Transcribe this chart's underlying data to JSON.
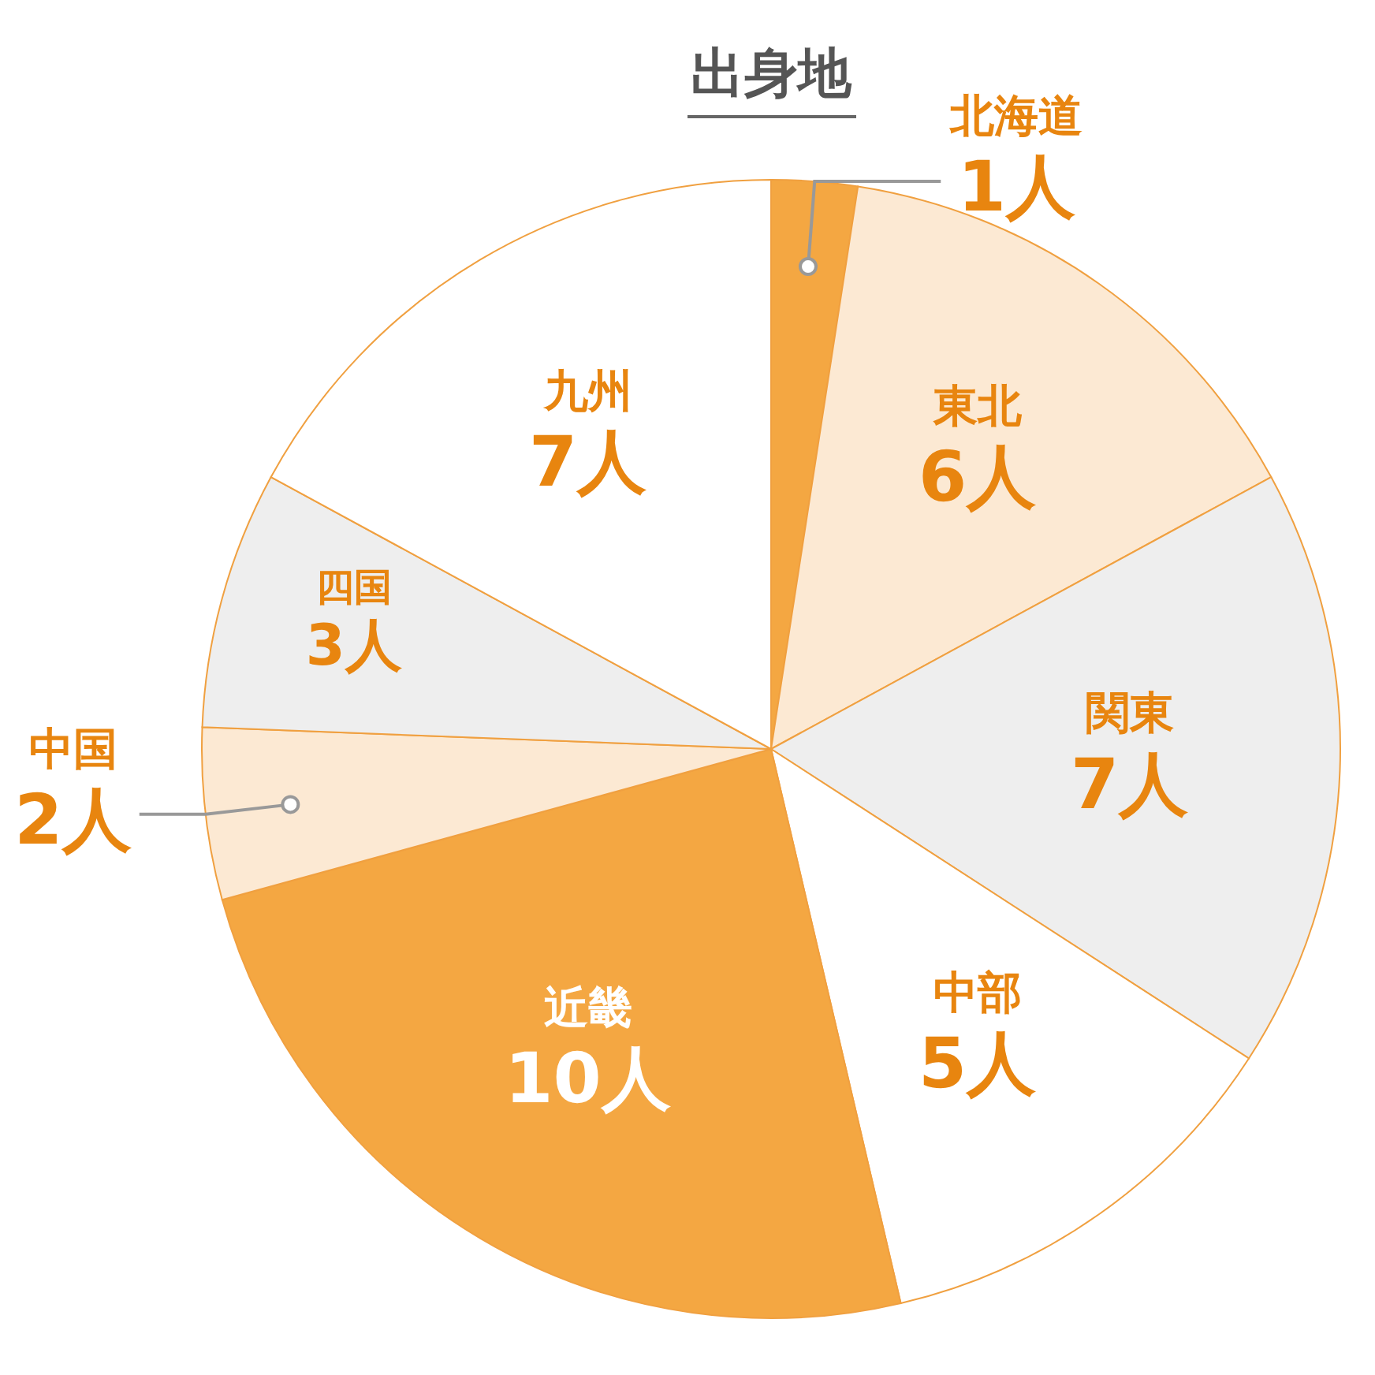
{
  "chart_data": {
    "type": "pie",
    "title": "出身地",
    "categories": [
      "北海道",
      "東北",
      "関東",
      "中部",
      "近畿",
      "中国",
      "四国",
      "九州"
    ],
    "values": [
      1,
      6,
      7,
      5,
      10,
      2,
      3,
      7
    ],
    "colors": [
      "#f4a742",
      "#fce9d3",
      "#eeeeee",
      "#ffffff",
      "#f4a742",
      "#fce9d3",
      "#eeeeee",
      "#ffffff"
    ],
    "value_labels": [
      "1人",
      "6人",
      "7人",
      "5人",
      "10人",
      "2人",
      "3人",
      "7人"
    ]
  }
}
